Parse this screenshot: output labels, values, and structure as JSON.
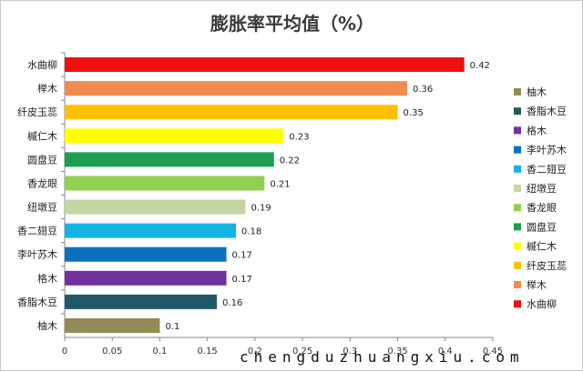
{
  "chart_data": {
    "type": "bar",
    "orientation": "horizontal",
    "title": "膨胀率平均值（%）",
    "xlabel": "",
    "ylabel": "",
    "xlim": [
      0,
      0.45
    ],
    "xticks": [
      "0",
      "0.05",
      "0.1",
      "0.15",
      "0.2",
      "0.25",
      "0.3",
      "0.35",
      "0.4",
      "0.45"
    ],
    "grid": false,
    "legend_position": "right",
    "bars": [
      {
        "category": "水曲柳",
        "value": 0.42,
        "label": "0.42",
        "color": "#ee1010"
      },
      {
        "category": "榉木",
        "value": 0.36,
        "label": "0.36",
        "color": "#f08c50"
      },
      {
        "category": "纤皮玉蕊",
        "value": 0.35,
        "label": "0.35",
        "color": "#ffc000"
      },
      {
        "category": "槭仁木",
        "value": 0.23,
        "label": "0.23",
        "color": "#ffff00"
      },
      {
        "category": "圆盘豆",
        "value": 0.22,
        "label": "0.22",
        "color": "#1aa050"
      },
      {
        "category": "香龙眼",
        "value": 0.21,
        "label": "0.21",
        "color": "#92d050"
      },
      {
        "category": "纽墩豆",
        "value": 0.19,
        "label": "0.19",
        "color": "#c4d7a0"
      },
      {
        "category": "香二翅豆",
        "value": 0.18,
        "label": "0.18",
        "color": "#12b4e4"
      },
      {
        "category": "李叶苏木",
        "value": 0.17,
        "label": "0.17",
        "color": "#0c70c0"
      },
      {
        "category": "格木",
        "value": 0.17,
        "label": "0.17",
        "color": "#7030a0"
      },
      {
        "category": "香脂木豆",
        "value": 0.16,
        "label": "0.16",
        "color": "#215868"
      },
      {
        "category": "柚木",
        "value": 0.1,
        "label": "0.1",
        "color": "#948a54"
      }
    ],
    "legend": [
      "柚木",
      "香脂木豆",
      "格木",
      "李叶苏木",
      "香二翅豆",
      "纽墩豆",
      "香龙眼",
      "圆盘豆",
      "槭仁木",
      "纤皮玉蕊",
      "榉木",
      "水曲柳"
    ]
  },
  "watermark": "chengduzhuangxiu.com"
}
